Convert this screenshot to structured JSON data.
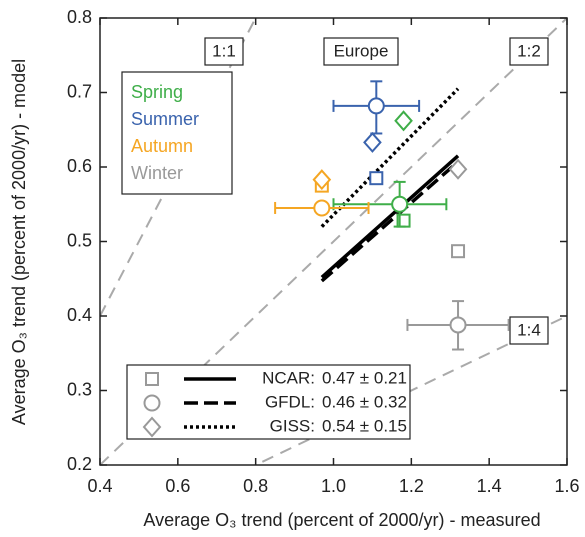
{
  "chart_data": {
    "type": "scatter",
    "x_label": "Average O₃ trend (percent of 2000/yr) - measured",
    "y_label": "Average O₃ trend (percent of 2000/yr) - model",
    "region": "Europe",
    "xlim": [
      0.4,
      1.6
    ],
    "ylim": [
      0.2,
      0.8
    ],
    "xticks": [
      0.4,
      0.6,
      0.8,
      {
        "value": 1,
        "label": "1.0"
      },
      1.2,
      1.4,
      1.6
    ],
    "yticks": [
      0.2,
      0.3,
      0.4,
      0.5,
      0.6,
      0.7,
      0.8
    ],
    "reference_lines": [
      {
        "label": "1:1",
        "slope": 1
      },
      {
        "label": "1:2",
        "slope": 0.5
      },
      {
        "label": "1:4",
        "slope": 0.25
      }
    ],
    "models": [
      {
        "name": "NCAR:",
        "label": "0.47 ± 0.21",
        "marker": "square",
        "line_style": "solid",
        "fit_x": [
          0.97,
          1.32
        ],
        "fit_y": [
          0.452,
          0.615
        ]
      },
      {
        "name": "GFDL:",
        "label": "0.46 ± 0.32",
        "marker": "circle",
        "line_style": "dashed",
        "fit_x": [
          0.97,
          1.32
        ],
        "fit_y": [
          0.447,
          0.607
        ]
      },
      {
        "name": "GISS:",
        "label": "0.54 ± 0.15",
        "marker": "diamond",
        "line_style": "dotted",
        "fit_x": [
          0.97,
          1.32
        ],
        "fit_y": [
          0.52,
          0.705
        ]
      }
    ],
    "series": [
      {
        "name": "Spring",
        "color": "#3fae49",
        "x": [
          1.18,
          1.17,
          1.18
        ],
        "values": [
          0.528,
          0.55,
          0.662
        ],
        "error_x": [
          null,
          [
            1.0,
            1.29
          ],
          null
        ],
        "error_y": [
          null,
          [
            0.52,
            0.58
          ],
          null
        ]
      },
      {
        "name": "Summer",
        "color": "#3a63ad",
        "x": [
          1.11,
          1.11,
          1.1
        ],
        "values": [
          0.585,
          0.682,
          0.633
        ],
        "error_x": [
          null,
          [
            1.0,
            1.22
          ],
          null
        ],
        "error_y": [
          null,
          [
            0.645,
            0.715
          ],
          null
        ]
      },
      {
        "name": "Autumn",
        "color": "#f5a623",
        "x": [
          0.97,
          0.97,
          0.97
        ],
        "values": [
          0.575,
          0.545,
          0.583
        ],
        "error_x": [
          null,
          [
            0.85,
            1.09
          ],
          null
        ],
        "error_y": [
          null,
          null,
          null
        ]
      },
      {
        "name": "Winter",
        "color": "#999999",
        "x": [
          1.32,
          1.32,
          1.32
        ],
        "values": [
          0.487,
          0.388,
          0.597
        ],
        "error_x": [
          null,
          [
            1.19,
            1.45
          ],
          null
        ],
        "error_y": [
          null,
          [
            0.355,
            0.42
          ],
          null
        ]
      }
    ]
  }
}
